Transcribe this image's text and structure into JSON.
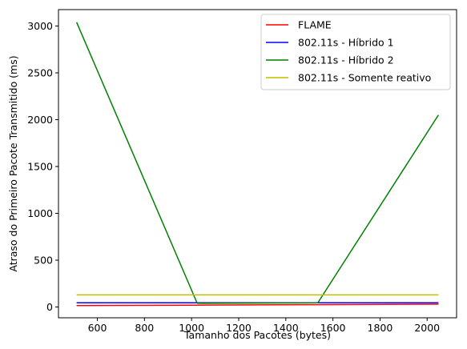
{
  "chart_data": {
    "type": "line",
    "title": "",
    "xlabel": "Tamanho dos Pacotes (bytes)",
    "ylabel": "Atraso do Primeiro Pacote Transmitido (ms)",
    "xlim": [
      435,
      2125
    ],
    "ylim": [
      -115,
      3175
    ],
    "xticks": [
      600,
      800,
      1000,
      1200,
      1400,
      1600,
      1800,
      2000
    ],
    "yticks": [
      0,
      500,
      1000,
      1500,
      2000,
      2500,
      3000
    ],
    "grid": false,
    "legend_position": "upper-right",
    "series": [
      {
        "name": "FLAME",
        "color": "#ff0000",
        "x": [
          512,
          1024,
          1536,
          2048
        ],
        "y": [
          15,
          20,
          25,
          30
        ]
      },
      {
        "name": "802.11s - Híbrido 1",
        "color": "#0000ff",
        "x": [
          512,
          1024,
          1536,
          2048
        ],
        "y": [
          45,
          45,
          45,
          45
        ]
      },
      {
        "name": "802.11s - Híbrido 2",
        "color": "#008000",
        "x": [
          512,
          1024,
          1536,
          2048
        ],
        "y": [
          3040,
          40,
          45,
          2050
        ]
      },
      {
        "name": "802.11s - Somente reativo",
        "color": "#bfbf00",
        "x": [
          512,
          1024,
          1536,
          2048
        ],
        "y": [
          130,
          130,
          130,
          130
        ]
      }
    ]
  }
}
